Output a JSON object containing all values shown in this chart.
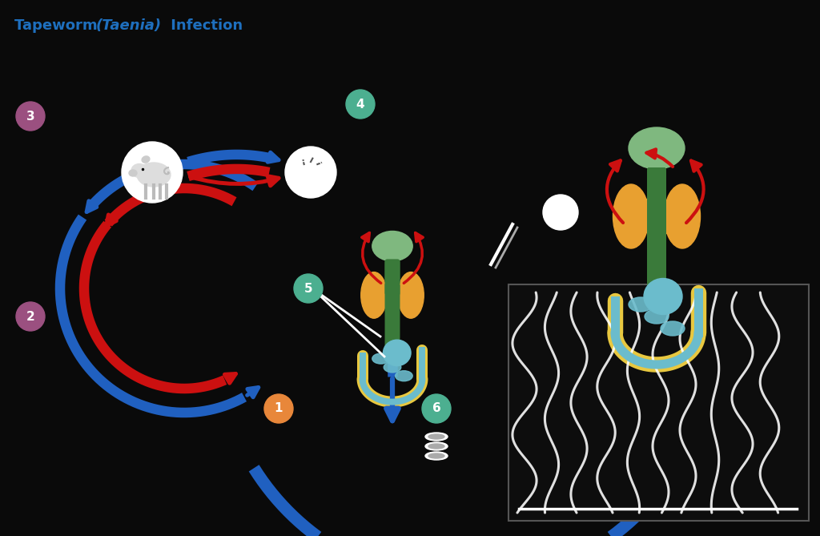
{
  "title_parts": [
    "Tapeworm ",
    "(Taenia)",
    " Infection"
  ],
  "title_color": "#1E6FBE",
  "background_color": "#0a0a0a",
  "blue": "#2060C0",
  "red": "#CC1010",
  "step_colors": {
    "1": "#E8873A",
    "2": "#9B5080",
    "3": "#9B5080",
    "4": "#4CAF90",
    "5": "#4CAF90",
    "6": "#4CAF90"
  },
  "brain_color": "#7FB87F",
  "lung_color": "#E8A030",
  "esoph_color": "#3A7A3A",
  "intestine_color": "#6BBCCC",
  "gut_color": "#E8C840",
  "photo_bg": "#0d0d0d"
}
